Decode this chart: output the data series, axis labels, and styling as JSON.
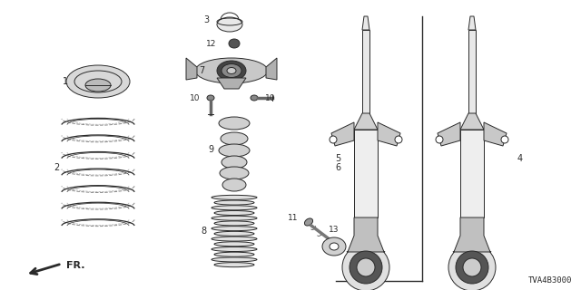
{
  "part_code": "TVA4B3000",
  "bg_color": "#ffffff",
  "line_color": "#2a2a2a",
  "figsize": [
    6.4,
    3.2
  ],
  "dpi": 100
}
